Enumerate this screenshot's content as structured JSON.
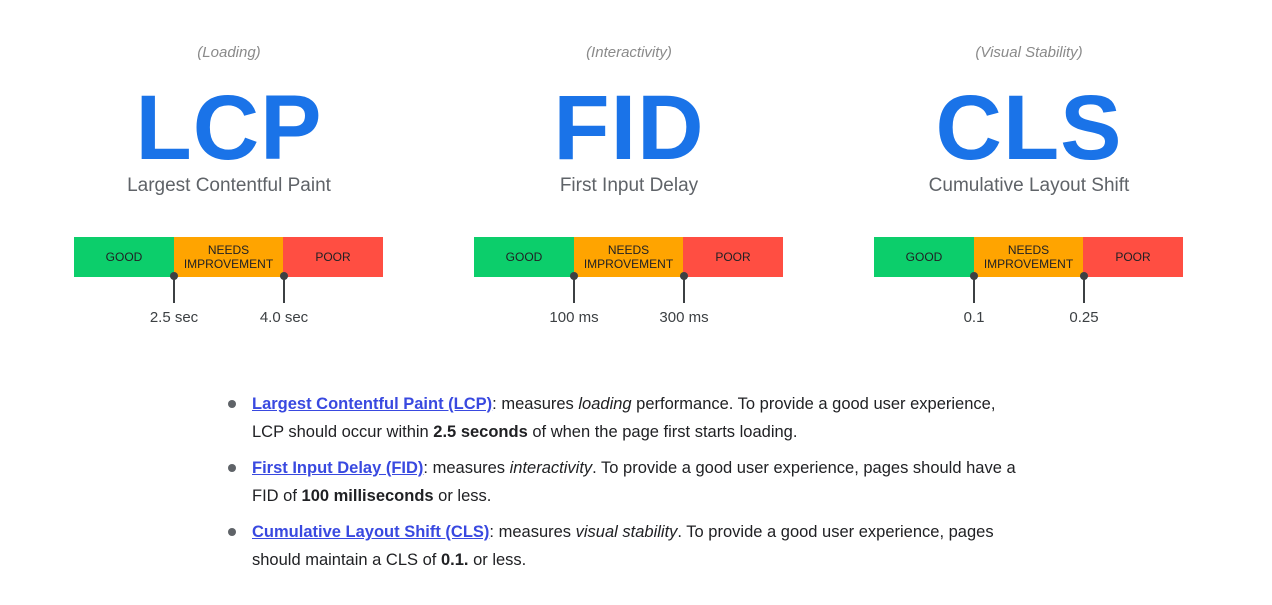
{
  "metrics": [
    {
      "category": "(Loading)",
      "abbr": "LCP",
      "name": "Largest Contentful Paint",
      "segments": {
        "good": "GOOD",
        "needs_line1": "NEEDS",
        "needs_line2": "IMPROVEMENT",
        "poor": "POOR"
      },
      "thresholds": [
        "2.5 sec",
        "4.0 sec"
      ]
    },
    {
      "category": "(Interactivity)",
      "abbr": "FID",
      "name": "First Input Delay",
      "segments": {
        "good": "GOOD",
        "needs_line1": "NEEDS",
        "needs_line2": "IMPROVEMENT",
        "poor": "POOR"
      },
      "thresholds": [
        "100 ms",
        "300 ms"
      ]
    },
    {
      "category": "(Visual Stability)",
      "abbr": "CLS",
      "name": "Cumulative Layout Shift",
      "segments": {
        "good": "GOOD",
        "needs_line1": "NEEDS",
        "needs_line2": "IMPROVEMENT",
        "poor": "POOR"
      },
      "thresholds": [
        "0.1",
        "0.25"
      ]
    }
  ],
  "list": [
    {
      "link": "Largest Contentful Paint (LCP)",
      "t1": ": measures ",
      "em": "loading",
      "t2": " performance. To provide a good user experience, LCP should occur within ",
      "strong": "2.5 seconds",
      "t3": " of when the page first starts loading."
    },
    {
      "link": "First Input Delay (FID)",
      "t1": ": measures ",
      "em": "interactivity",
      "t2": ". To provide a good user experience, pages should have a FID of ",
      "strong": "100 milliseconds",
      "t3": " or less."
    },
    {
      "link": "Cumulative Layout Shift (CLS)",
      "t1": ": measures ",
      "em": "visual stability",
      "t2": ". To provide a good user experience, pages should maintain a CLS of ",
      "strong": "0.1.",
      "t3": " or less."
    }
  ],
  "colors": {
    "accent": "#1a73e8",
    "good": "#0cce6b",
    "needs_improvement": "#ffa400",
    "poor": "#ff4e42",
    "link": "#3949e0"
  }
}
